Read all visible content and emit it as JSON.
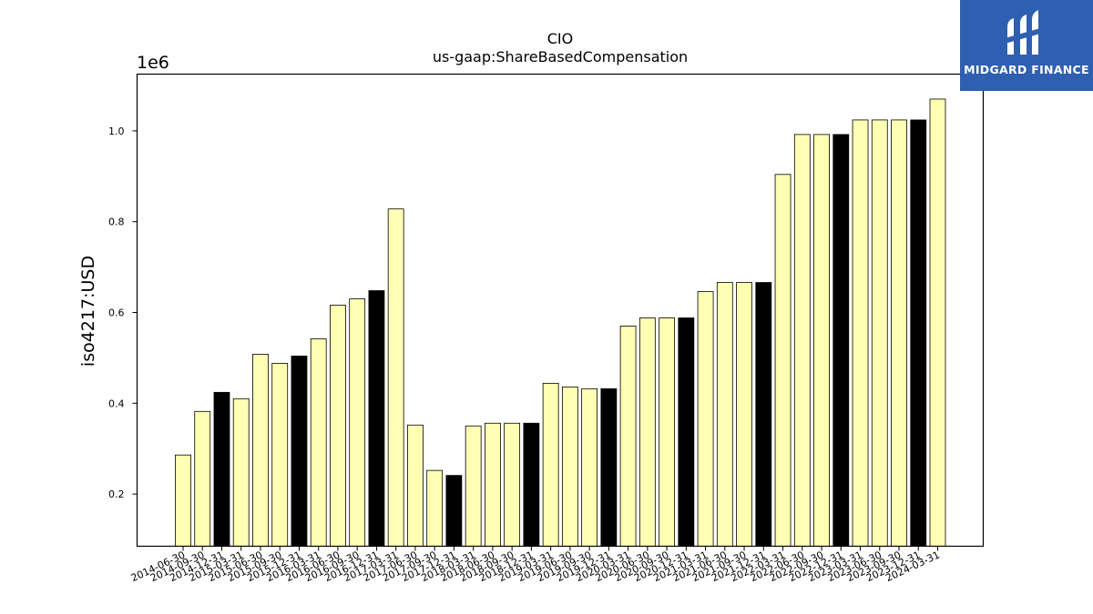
{
  "brand": {
    "name": "MIDGARD FINANCE"
  },
  "chart_data": {
    "type": "bar",
    "title": "CIO",
    "subtitle": "us-gaap:ShareBasedCompensation",
    "ylabel": "iso4217:USD",
    "y_offset_label": "1e6",
    "y_scale": 1000000,
    "ylim": [
      0.085,
      1.125
    ],
    "yticks": [
      0.2,
      0.4,
      0.6,
      0.8,
      1.0
    ],
    "ytick_labels": [
      "0.2",
      "0.4",
      "0.6",
      "0.8",
      "1.0"
    ],
    "grid": false,
    "colors": {
      "default": "#ffffb3",
      "highlight": "#000000",
      "edge": "#000000"
    },
    "categories": [
      "2014-06-30",
      "2014-09-30",
      "2014-12-31",
      "2015-03-31",
      "2015-06-30",
      "2015-09-30",
      "2015-12-31",
      "2016-03-31",
      "2016-06-30",
      "2016-09-30",
      "2016-12-31",
      "2017-03-31",
      "2017-06-30",
      "2017-09-30",
      "2017-12-31",
      "2018-03-31",
      "2018-06-30",
      "2018-09-30",
      "2018-12-31",
      "2019-03-31",
      "2019-06-30",
      "2019-09-30",
      "2019-12-31",
      "2020-03-31",
      "2020-06-30",
      "2020-09-30",
      "2020-12-31",
      "2021-03-31",
      "2021-06-30",
      "2021-09-30",
      "2021-12-31",
      "2022-03-31",
      "2022-06-30",
      "2022-09-30",
      "2022-12-31",
      "2023-03-31",
      "2023-06-30",
      "2023-09-30",
      "2023-12-31",
      "2024-03-31"
    ],
    "values": [
      286000,
      382000,
      424000,
      410000,
      508000,
      488000,
      504000,
      542000,
      616000,
      630000,
      648000,
      828000,
      352000,
      252000,
      241000,
      350000,
      356000,
      356000,
      356000,
      444000,
      436000,
      432000,
      432000,
      570000,
      588000,
      588000,
      588000,
      646000,
      666000,
      666000,
      666000,
      904000,
      992000,
      992000,
      992000,
      1024000,
      1024000,
      1024000,
      1024000,
      1070000
    ],
    "highlighted": [
      false,
      false,
      true,
      false,
      false,
      false,
      true,
      false,
      false,
      false,
      true,
      false,
      false,
      false,
      true,
      false,
      false,
      false,
      true,
      false,
      false,
      false,
      true,
      false,
      false,
      false,
      true,
      false,
      false,
      false,
      true,
      false,
      false,
      false,
      true,
      false,
      false,
      false,
      true,
      false
    ]
  }
}
